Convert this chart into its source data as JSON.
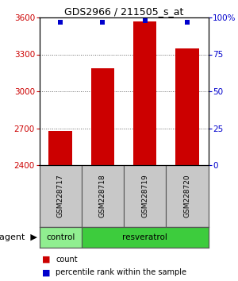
{
  "title": "GDS2966 / 211505_s_at",
  "samples": [
    "GSM228717",
    "GSM228718",
    "GSM228719",
    "GSM228720"
  ],
  "bar_values": [
    2680,
    3190,
    3570,
    3350
  ],
  "percentile_values": [
    97,
    97,
    98,
    97
  ],
  "bar_color": "#cc0000",
  "percentile_color": "#0000cc",
  "ylim_left": [
    2400,
    3600
  ],
  "ylim_right": [
    0,
    100
  ],
  "yticks_left": [
    2400,
    2700,
    3000,
    3300,
    3600
  ],
  "yticks_right": [
    0,
    25,
    50,
    75,
    100
  ],
  "bar_bottom": 2400,
  "group_control_color": "#90ee90",
  "group_resveratrol_color": "#3dcc3d",
  "background_color": "#ffffff",
  "label_box_color": "#c8c8c8",
  "bar_width": 0.55,
  "title_fontsize": 9,
  "tick_fontsize": 7.5,
  "sample_fontsize": 6.5,
  "group_fontsize": 7.5,
  "legend_fontsize": 7,
  "agent_fontsize": 8
}
